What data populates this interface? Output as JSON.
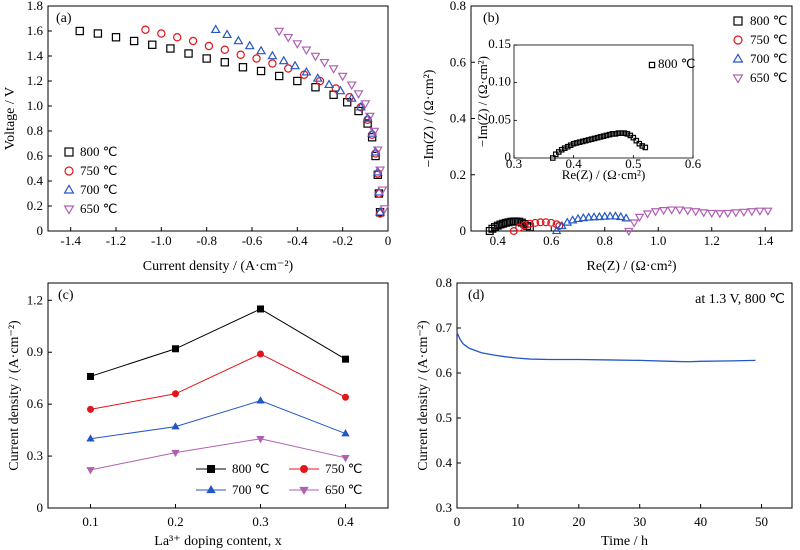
{
  "figure": {
    "panels": [
      {
        "key": "a",
        "label": "(a)"
      },
      {
        "key": "b",
        "label": "(b)"
      },
      {
        "key": "c",
        "label": "(c)"
      },
      {
        "key": "d",
        "label": "(d)"
      }
    ]
  },
  "colors": {
    "s800": "#000000",
    "s750": "#e3151b",
    "s700": "#2457c5",
    "s650": "#b05fb3",
    "d_line": "#2457c5"
  },
  "chart_data": [
    {
      "panel": "a",
      "type": "scatter",
      "xlabel": "Current density / (A·cm⁻²)",
      "ylabel": "Voltage / V",
      "xlim": [
        -1.5,
        0
      ],
      "ylim": [
        0,
        1.8
      ],
      "xticks": [
        "-1.4",
        "-1.2",
        "-1.0",
        "-0.8",
        "-0.6",
        "-0.4",
        "-0.2",
        "0"
      ],
      "yticks": [
        "0",
        "0.2",
        "0.4",
        "0.6",
        "0.8",
        "1.0",
        "1.2",
        "1.4",
        "1.6",
        "1.8"
      ],
      "legend_position": "lower-left",
      "series": [
        {
          "name": "800 ℃",
          "marker": "square",
          "points": [
            [
              -1.36,
              1.6
            ],
            [
              -1.28,
              1.58
            ],
            [
              -1.2,
              1.55
            ],
            [
              -1.12,
              1.52
            ],
            [
              -1.04,
              1.49
            ],
            [
              -0.96,
              1.46
            ],
            [
              -0.88,
              1.42
            ],
            [
              -0.8,
              1.38
            ],
            [
              -0.72,
              1.35
            ],
            [
              -0.64,
              1.31
            ],
            [
              -0.56,
              1.28
            ],
            [
              -0.48,
              1.24
            ],
            [
              -0.4,
              1.2
            ],
            [
              -0.32,
              1.15
            ],
            [
              -0.24,
              1.09
            ],
            [
              -0.18,
              1.03
            ],
            [
              -0.13,
              0.96
            ],
            [
              -0.09,
              0.86
            ],
            [
              -0.07,
              0.75
            ],
            [
              -0.055,
              0.6
            ],
            [
              -0.045,
              0.45
            ],
            [
              -0.04,
              0.3
            ],
            [
              -0.035,
              0.15
            ]
          ]
        },
        {
          "name": "750 ℃",
          "marker": "circle",
          "points": [
            [
              -1.07,
              1.61
            ],
            [
              -1.0,
              1.58
            ],
            [
              -0.93,
              1.55
            ],
            [
              -0.86,
              1.52
            ],
            [
              -0.79,
              1.48
            ],
            [
              -0.72,
              1.45
            ],
            [
              -0.65,
              1.41
            ],
            [
              -0.58,
              1.38
            ],
            [
              -0.51,
              1.34
            ],
            [
              -0.44,
              1.3
            ],
            [
              -0.37,
              1.25
            ],
            [
              -0.3,
              1.2
            ],
            [
              -0.23,
              1.14
            ],
            [
              -0.17,
              1.07
            ],
            [
              -0.12,
              0.99
            ],
            [
              -0.09,
              0.89
            ],
            [
              -0.07,
              0.77
            ],
            [
              -0.055,
              0.62
            ],
            [
              -0.045,
              0.46
            ],
            [
              -0.04,
              0.3
            ],
            [
              -0.035,
              0.14
            ]
          ]
        },
        {
          "name": "700 ℃",
          "marker": "triangle-up",
          "points": [
            [
              -0.76,
              1.61
            ],
            [
              -0.71,
              1.57
            ],
            [
              -0.66,
              1.52
            ],
            [
              -0.61,
              1.48
            ],
            [
              -0.56,
              1.44
            ],
            [
              -0.51,
              1.4
            ],
            [
              -0.46,
              1.36
            ],
            [
              -0.41,
              1.32
            ],
            [
              -0.36,
              1.27
            ],
            [
              -0.31,
              1.22
            ],
            [
              -0.26,
              1.17
            ],
            [
              -0.21,
              1.12
            ],
            [
              -0.16,
              1.06
            ],
            [
              -0.12,
              0.99
            ],
            [
              -0.09,
              0.9
            ],
            [
              -0.07,
              0.78
            ],
            [
              -0.055,
              0.63
            ],
            [
              -0.045,
              0.47
            ],
            [
              -0.04,
              0.31
            ],
            [
              -0.035,
              0.15
            ]
          ]
        },
        {
          "name": "650 ℃",
          "marker": "triangle-down",
          "points": [
            [
              -0.48,
              1.6
            ],
            [
              -0.44,
              1.55
            ],
            [
              -0.4,
              1.5
            ],
            [
              -0.36,
              1.45
            ],
            [
              -0.32,
              1.4
            ],
            [
              -0.28,
              1.35
            ],
            [
              -0.24,
              1.3
            ],
            [
              -0.2,
              1.24
            ],
            [
              -0.16,
              1.17
            ],
            [
              -0.13,
              1.1
            ],
            [
              -0.1,
              1.02
            ],
            [
              -0.08,
              0.92
            ],
            [
              -0.06,
              0.8
            ],
            [
              -0.045,
              0.65
            ],
            [
              -0.035,
              0.49
            ],
            [
              -0.025,
              0.33
            ],
            [
              -0.015,
              0.18
            ]
          ]
        }
      ]
    },
    {
      "panel": "b",
      "type": "scatter",
      "xlabel": "Re(Z) / (Ω·cm²)",
      "ylabel": "−Im(Z) / (Ω·cm²)",
      "xlim": [
        0.3,
        1.5
      ],
      "ylim": [
        0,
        0.8
      ],
      "xticks": [
        "0.4",
        "0.6",
        "0.8",
        "1.0",
        "1.2",
        "1.4"
      ],
      "yticks": [
        "0",
        "0.2",
        "0.4",
        "0.6",
        "0.8"
      ],
      "legend_position": "top-right",
      "series": [
        {
          "name": "800 ℃",
          "marker": "square",
          "points": [
            [
              0.37,
              0.0
            ],
            [
              0.38,
              0.008
            ],
            [
              0.39,
              0.014
            ],
            [
              0.4,
              0.019
            ],
            [
              0.41,
              0.023
            ],
            [
              0.42,
              0.026
            ],
            [
              0.43,
              0.029
            ],
            [
              0.44,
              0.031
            ],
            [
              0.45,
              0.033
            ],
            [
              0.46,
              0.034
            ],
            [
              0.47,
              0.034
            ],
            [
              0.48,
              0.033
            ],
            [
              0.49,
              0.03
            ],
            [
              0.5,
              0.025
            ],
            [
              0.51,
              0.018
            ],
            [
              0.52,
              0.013
            ]
          ]
        },
        {
          "name": "750 ℃",
          "marker": "circle",
          "points": [
            [
              0.46,
              0.0
            ],
            [
              0.48,
              0.012
            ],
            [
              0.5,
              0.02
            ],
            [
              0.52,
              0.026
            ],
            [
              0.54,
              0.029
            ],
            [
              0.56,
              0.031
            ],
            [
              0.58,
              0.031
            ],
            [
              0.6,
              0.029
            ],
            [
              0.62,
              0.024
            ],
            [
              0.63,
              0.018
            ]
          ]
        },
        {
          "name": "700 ℃",
          "marker": "triangle-up",
          "points": [
            [
              0.62,
              0.0
            ],
            [
              0.64,
              0.018
            ],
            [
              0.66,
              0.03
            ],
            [
              0.68,
              0.038
            ],
            [
              0.7,
              0.043
            ],
            [
              0.72,
              0.046
            ],
            [
              0.74,
              0.048
            ],
            [
              0.76,
              0.049
            ],
            [
              0.78,
              0.05
            ],
            [
              0.8,
              0.051
            ],
            [
              0.82,
              0.052
            ],
            [
              0.84,
              0.052
            ],
            [
              0.86,
              0.05
            ],
            [
              0.88,
              0.045
            ]
          ]
        },
        {
          "name": "650 ℃",
          "marker": "triangle-down",
          "points": [
            [
              0.89,
              0.0
            ],
            [
              0.91,
              0.03
            ],
            [
              0.93,
              0.05
            ],
            [
              0.96,
              0.062
            ],
            [
              0.99,
              0.07
            ],
            [
              1.02,
              0.074
            ],
            [
              1.05,
              0.076
            ],
            [
              1.08,
              0.076
            ],
            [
              1.11,
              0.073
            ],
            [
              1.14,
              0.07
            ],
            [
              1.17,
              0.066
            ],
            [
              1.2,
              0.064
            ],
            [
              1.23,
              0.063
            ],
            [
              1.26,
              0.064
            ],
            [
              1.29,
              0.066
            ],
            [
              1.32,
              0.068
            ],
            [
              1.35,
              0.07
            ],
            [
              1.38,
              0.072
            ],
            [
              1.41,
              0.072
            ]
          ]
        }
      ],
      "inset": {
        "type": "scatter",
        "legend": "800 ℃",
        "xlabel": "Re(Z) / (Ω·cm²)",
        "ylabel": "−Im(Z) / (Ω·cm²)",
        "xlim": [
          0.3,
          0.6
        ],
        "ylim": [
          0,
          0.15
        ],
        "xticks": [
          "0.3",
          "0.4",
          "0.5",
          "0.6"
        ],
        "yticks": [
          "0",
          "0.05",
          "0.10",
          "0.15"
        ],
        "points": [
          [
            0.365,
            0.0
          ],
          [
            0.37,
            0.005
          ],
          [
            0.375,
            0.008
          ],
          [
            0.38,
            0.011
          ],
          [
            0.385,
            0.013
          ],
          [
            0.39,
            0.015
          ],
          [
            0.395,
            0.017
          ],
          [
            0.4,
            0.019
          ],
          [
            0.405,
            0.02
          ],
          [
            0.41,
            0.021
          ],
          [
            0.415,
            0.022
          ],
          [
            0.42,
            0.023
          ],
          [
            0.425,
            0.024
          ],
          [
            0.43,
            0.025
          ],
          [
            0.435,
            0.026
          ],
          [
            0.44,
            0.027
          ],
          [
            0.445,
            0.028
          ],
          [
            0.45,
            0.029
          ],
          [
            0.455,
            0.03
          ],
          [
            0.46,
            0.031
          ],
          [
            0.465,
            0.032
          ],
          [
            0.47,
            0.032
          ],
          [
            0.475,
            0.033
          ],
          [
            0.48,
            0.033
          ],
          [
            0.485,
            0.033
          ],
          [
            0.49,
            0.032
          ],
          [
            0.495,
            0.03
          ],
          [
            0.5,
            0.027
          ],
          [
            0.505,
            0.023
          ],
          [
            0.51,
            0.019
          ],
          [
            0.515,
            0.016
          ],
          [
            0.52,
            0.014
          ]
        ]
      }
    },
    {
      "panel": "c",
      "type": "line",
      "xlabel": "La³⁺ doping content, x",
      "ylabel": "Current density / (A·cm⁻²)",
      "x": [
        0.1,
        0.2,
        0.3,
        0.4
      ],
      "xlim": [
        0.05,
        0.45
      ],
      "ylim": [
        0,
        1.3
      ],
      "xticks": [
        "0.1",
        "0.2",
        "0.3",
        "0.4"
      ],
      "yticks": [
        "0",
        "0.3",
        "0.6",
        "0.9",
        "1.2"
      ],
      "legend_position": "bottom-right",
      "series": [
        {
          "name": "800 ℃",
          "marker": "square",
          "values": [
            0.76,
            0.92,
            1.15,
            0.86
          ]
        },
        {
          "name": "750 ℃",
          "marker": "circle",
          "values": [
            0.57,
            0.66,
            0.89,
            0.64
          ]
        },
        {
          "name": "700 ℃",
          "marker": "triangle-up",
          "values": [
            0.4,
            0.47,
            0.62,
            0.43
          ]
        },
        {
          "name": "650 ℃",
          "marker": "triangle-down",
          "values": [
            0.22,
            0.32,
            0.4,
            0.29
          ]
        }
      ]
    },
    {
      "panel": "d",
      "type": "line",
      "xlabel": "Time / h",
      "ylabel": "Current density / (A·cm⁻²)",
      "annotation": "at 1.3 V, 800 ℃",
      "xlim": [
        0,
        55
      ],
      "ylim": [
        0.3,
        0.8
      ],
      "xticks": [
        "0",
        "10",
        "20",
        "30",
        "40",
        "50"
      ],
      "yticks": [
        "0.3",
        "0.4",
        "0.5",
        "0.6",
        "0.7",
        "0.8"
      ],
      "series": [
        {
          "points": [
            [
              0,
              0.69
            ],
            [
              0.5,
              0.675
            ],
            [
              1,
              0.665
            ],
            [
              2,
              0.655
            ],
            [
              3,
              0.65
            ],
            [
              4,
              0.645
            ],
            [
              6,
              0.64
            ],
            [
              8,
              0.636
            ],
            [
              10,
              0.633
            ],
            [
              12,
              0.631
            ],
            [
              15,
              0.63
            ],
            [
              20,
              0.63
            ],
            [
              25,
              0.629
            ],
            [
              30,
              0.628
            ],
            [
              35,
              0.626
            ],
            [
              38,
              0.625
            ],
            [
              40,
              0.626
            ],
            [
              45,
              0.627
            ],
            [
              49,
              0.628
            ]
          ]
        }
      ]
    }
  ]
}
